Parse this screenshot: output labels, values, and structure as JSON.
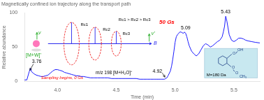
{
  "chart_data": {
    "type": "line",
    "title": "Magnetically confined ion trajectory along the transport path",
    "xlabel": "Time (min)",
    "ylabel": "Relative abundance",
    "x": [
      3.72,
      3.74,
      3.76,
      3.77,
      3.78,
      3.8,
      3.82,
      3.84,
      3.86,
      3.88,
      3.9,
      3.92,
      3.94,
      3.96,
      3.98,
      4.0,
      4.02,
      4.04,
      4.06,
      4.08,
      4.1,
      4.12,
      4.14,
      4.16,
      4.18,
      4.2,
      4.22,
      4.25,
      4.28,
      4.31,
      4.34,
      4.37,
      4.4,
      4.43,
      4.46,
      4.49,
      4.52,
      4.55,
      4.58,
      4.61,
      4.64,
      4.67,
      4.7,
      4.73,
      4.76,
      4.79,
      4.82,
      4.84,
      4.86,
      4.88,
      4.9,
      4.91,
      4.92,
      4.93,
      4.94,
      4.96,
      4.97,
      4.98,
      4.99,
      5.0,
      5.01,
      5.02,
      5.03,
      5.04,
      5.05,
      5.06,
      5.07,
      5.08,
      5.09,
      5.1,
      5.11,
      5.12,
      5.14,
      5.16,
      5.18,
      5.2,
      5.22,
      5.24,
      5.26,
      5.28,
      5.3,
      5.32,
      5.34,
      5.36,
      5.38,
      5.4,
      5.41,
      5.42,
      5.43,
      5.44,
      5.45,
      5.46,
      5.48,
      5.5,
      5.52,
      5.54,
      5.56,
      5.58,
      5.6,
      5.62,
      5.65,
      5.68,
      5.72
    ],
    "values": [
      2,
      2,
      14,
      19,
      14,
      11,
      9,
      8,
      7,
      7,
      8,
      9,
      12,
      15,
      17,
      17,
      16,
      15,
      13,
      12,
      11,
      10,
      9,
      8,
      8,
      7,
      7,
      6,
      5,
      5,
      5,
      5,
      5,
      5,
      4,
      4,
      4,
      4,
      4,
      4,
      4,
      4,
      3,
      3,
      3,
      3,
      3,
      3,
      3,
      3,
      3,
      3,
      4,
      5,
      8,
      15,
      22,
      32,
      44,
      57,
      65,
      68,
      70,
      72,
      72,
      71,
      70,
      72,
      70,
      65,
      58,
      52,
      44,
      40,
      37,
      40,
      46,
      52,
      55,
      53,
      50,
      52,
      55,
      58,
      60,
      65,
      72,
      80,
      95,
      88,
      78,
      68,
      60,
      58,
      60,
      63,
      63,
      62,
      60,
      59,
      58,
      57,
      56
    ],
    "color": "#1a1aff",
    "xlim": [
      3.72,
      5.72
    ],
    "ylim": [
      0,
      100
    ],
    "xticks": [
      {
        "value": 4,
        "label": "4.0"
      },
      {
        "value": 4.5,
        "label": "4.5"
      },
      {
        "value": 5,
        "label": "5.0"
      },
      {
        "value": 5.5,
        "label": "5.5"
      }
    ],
    "yticks": [
      0,
      50,
      100
    ],
    "grid": false,
    "annotations": [
      {
        "text": "3.76",
        "x": 3.76,
        "y": 14,
        "color": "#000000"
      },
      {
        "text": "4.92",
        "x": 4.92,
        "y": 5,
        "color": "#000000"
      },
      {
        "text": "5.09",
        "x": 5.09,
        "y": 74,
        "color": "#000000"
      },
      {
        "text": "5.43",
        "x": 5.43,
        "y": 97,
        "color": "#000000"
      },
      {
        "text": "Sampling begins, 0 Gs",
        "color": "#ff0000"
      },
      {
        "text": "50 Gs",
        "color": "#ff0000"
      },
      {
        "text": "m/z 198 [M+H₂O]⁺",
        "color": "#000000"
      },
      {
        "text": "[M+W]⁺",
        "color": "#22aa22"
      },
      {
        "text": "Rc1 > Rc2 > Rc3",
        "color": "#000000"
      },
      {
        "text": "v",
        "color": "#22aa22"
      },
      {
        "text": "B",
        "color": "#2222ee"
      },
      {
        "text": "v'",
        "color": "#22aa22"
      },
      {
        "text": "Rc1",
        "color": "#000000"
      },
      {
        "text": "Rc2",
        "color": "#000000"
      },
      {
        "text": "Rc3",
        "color": "#000000"
      },
      {
        "text": "M=180 Da",
        "color": "#000000"
      },
      {
        "text": "O",
        "color": "#224488"
      },
      {
        "text": "OH",
        "color": "#224488"
      },
      {
        "text": "O",
        "color": "#224488"
      },
      {
        "text": "O",
        "color": "#224488"
      },
      {
        "text": "CH₃",
        "color": "#224488"
      }
    ]
  }
}
